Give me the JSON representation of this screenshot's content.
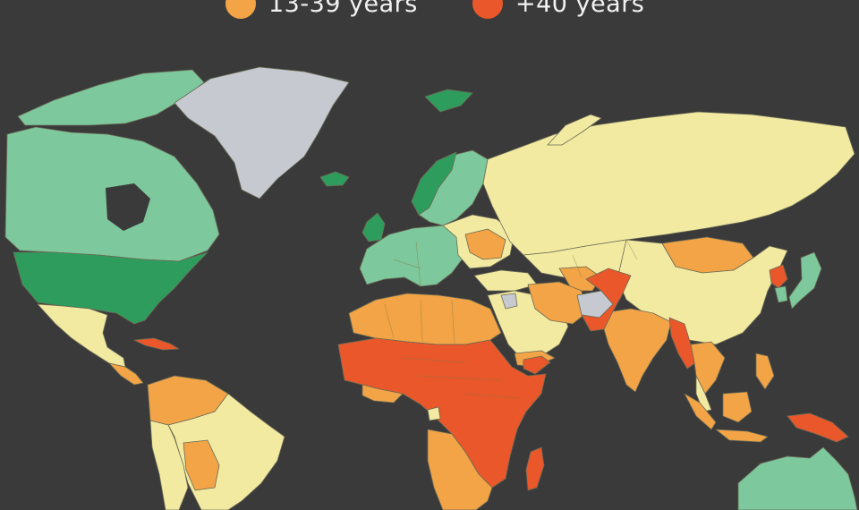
{
  "legend": {
    "items": [
      {
        "label": "13-39 years",
        "color": "#f2a446"
      },
      {
        "label": "+40 years",
        "color": "#e9572a"
      }
    ]
  },
  "map": {
    "colors": {
      "background": "#3a3a3b",
      "dark_green": "#2e9c5c",
      "light_green": "#7dc89c",
      "pale_yellow": "#f3eaa2",
      "orange": "#f2a446",
      "red_orange": "#e9572a",
      "no_data_gray": "#c6c9d0"
    }
  }
}
